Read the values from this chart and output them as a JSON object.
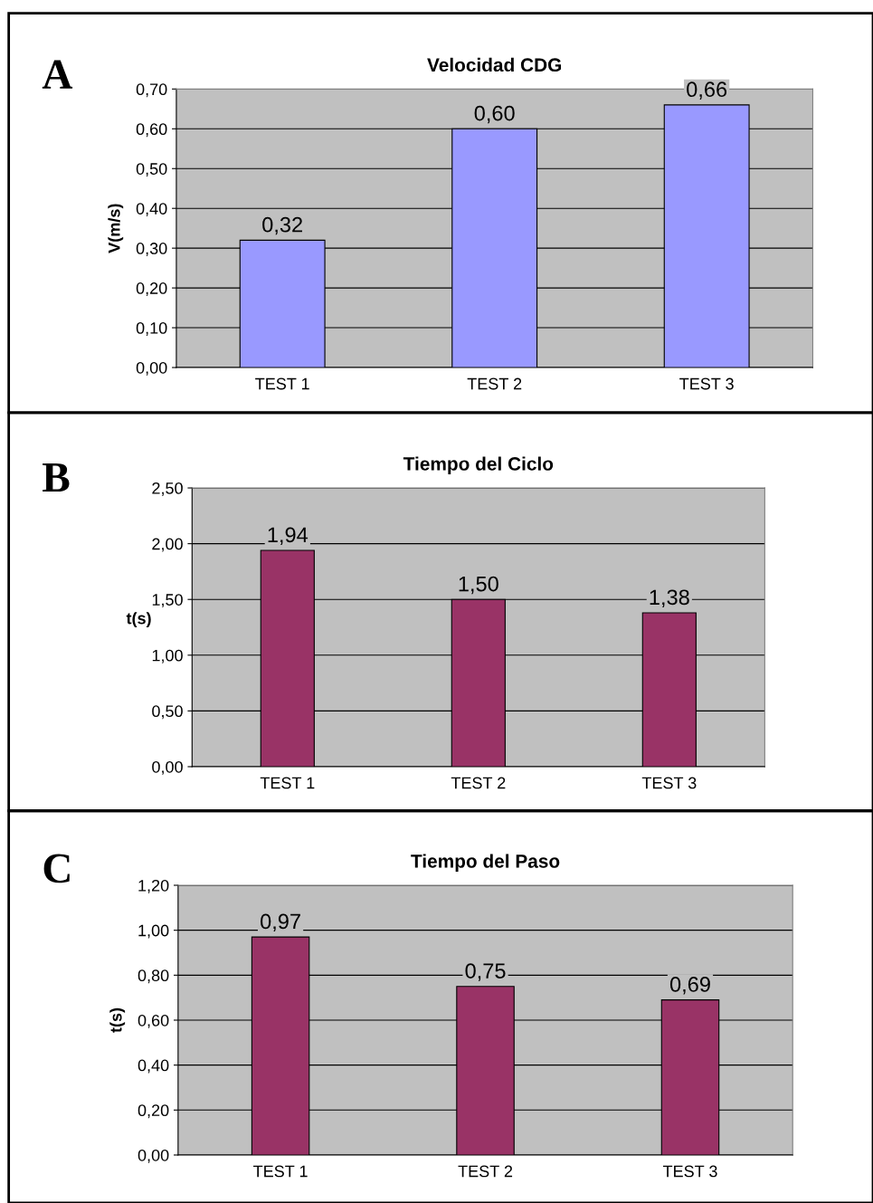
{
  "chart_data": [
    {
      "type": "bar",
      "title": "Velocidad CDG",
      "ylabel": "V(m/s)",
      "annotations": [
        "A"
      ],
      "categories": [
        "TEST 1",
        "TEST 2",
        "TEST 3"
      ],
      "values": [
        0.32,
        0.6,
        0.66
      ],
      "value_labels": [
        "0,32",
        "0,60",
        "0,66"
      ],
      "color": "#9999ff",
      "ylim": [
        0,
        0.7
      ],
      "yticks": [
        {
          "value": 0,
          "label": "0,00"
        },
        {
          "value": 0.1,
          "label": "0,10"
        },
        {
          "value": 0.2,
          "label": "0,20"
        },
        {
          "value": 0.3,
          "label": "0,30"
        },
        {
          "value": 0.4,
          "label": "0,40"
        },
        {
          "value": 0.5,
          "label": "0,50"
        },
        {
          "value": 0.6,
          "label": "0,60"
        },
        {
          "value": 0.7,
          "label": "0,70"
        }
      ],
      "grid": "y",
      "legend": false
    },
    {
      "type": "bar",
      "title": "Tiempo del Ciclo",
      "ylabel": "t(s)",
      "annotations": [
        "B"
      ],
      "categories": [
        "TEST 1",
        "TEST 2",
        "TEST 3"
      ],
      "values": [
        1.94,
        1.5,
        1.38
      ],
      "value_labels": [
        "1,94",
        "1,50",
        "1,38"
      ],
      "color": "#993366",
      "ylim": [
        0,
        2.5
      ],
      "yticks": [
        {
          "value": 0,
          "label": "0,00"
        },
        {
          "value": 0.5,
          "label": "0,50"
        },
        {
          "value": 1.0,
          "label": "1,00"
        },
        {
          "value": 1.5,
          "label": "1,50"
        },
        {
          "value": 2.0,
          "label": "2,00"
        },
        {
          "value": 2.5,
          "label": "2,50"
        }
      ],
      "grid": "y",
      "legend": false
    },
    {
      "type": "bar",
      "title": "Tiempo del Paso",
      "ylabel": "t(s)",
      "annotations": [
        "C"
      ],
      "categories": [
        "TEST 1",
        "TEST 2",
        "TEST 3"
      ],
      "values": [
        0.97,
        0.75,
        0.69
      ],
      "value_labels": [
        "0,97",
        "0,75",
        "0,69"
      ],
      "color": "#993366",
      "ylim": [
        0,
        1.2
      ],
      "yticks": [
        {
          "value": 0,
          "label": "0,00"
        },
        {
          "value": 0.2,
          "label": "0,20"
        },
        {
          "value": 0.4,
          "label": "0,40"
        },
        {
          "value": 0.6,
          "label": "0,60"
        },
        {
          "value": 0.8,
          "label": "0,80"
        },
        {
          "value": 1.0,
          "label": "1,00"
        },
        {
          "value": 1.2,
          "label": "1,20"
        }
      ],
      "grid": "y",
      "legend": false
    }
  ]
}
